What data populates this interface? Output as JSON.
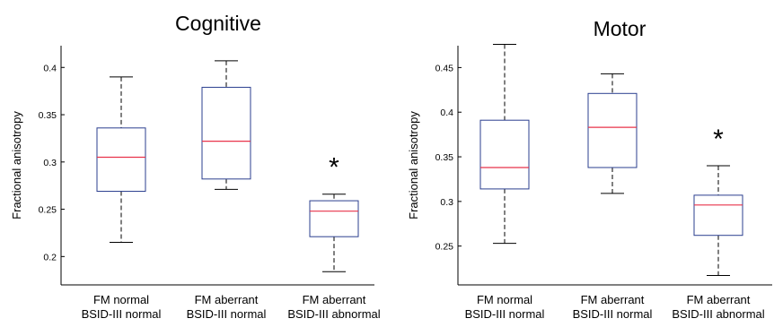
{
  "chart_data": [
    {
      "type": "box",
      "title": "Cognitive",
      "ylabel": "Fractional anisotropy",
      "ylim": [
        0.17,
        0.423
      ],
      "yticks": [
        0.2,
        0.25,
        0.3,
        0.35,
        0.4
      ],
      "ytick_labels": [
        "0.2",
        "0.25",
        "0.3",
        "0.35",
        "0.4"
      ],
      "categories": [
        [
          "FM normal",
          "BSID-III normal"
        ],
        [
          "FM aberrant",
          "BSID-III normal"
        ],
        [
          "FM aberrant",
          "BSID-III abnormal"
        ]
      ],
      "boxes": [
        {
          "whisker_low": 0.215,
          "q1": 0.269,
          "median": 0.305,
          "q3": 0.336,
          "whisker_high": 0.39,
          "annotation": ""
        },
        {
          "whisker_low": 0.271,
          "q1": 0.282,
          "median": 0.322,
          "q3": 0.379,
          "whisker_high": 0.407,
          "annotation": ""
        },
        {
          "whisker_low": 0.184,
          "q1": 0.221,
          "median": 0.248,
          "q3": 0.259,
          "whisker_high": 0.266,
          "annotation": "*"
        }
      ],
      "colors": {
        "box": "#2b3f8f",
        "median": "#e8334a",
        "whisker": "#000000"
      },
      "grid": false
    },
    {
      "type": "box",
      "title": "Motor",
      "ylabel": "Fractional anisotropy",
      "ylim": [
        0.2065,
        0.4745
      ],
      "yticks": [
        0.25,
        0.3,
        0.35,
        0.4,
        0.45
      ],
      "ytick_labels": [
        "0.25",
        "0.3",
        "0.35",
        "0.4",
        "0.45"
      ],
      "categories": [
        [
          "FM normal",
          "BSID-III normal"
        ],
        [
          "FM aberrant",
          "BSID-III normal"
        ],
        [
          "FM aberrant",
          "BSID-III abnormal"
        ]
      ],
      "boxes": [
        {
          "whisker_low": 0.253,
          "q1": 0.314,
          "median": 0.338,
          "q3": 0.391,
          "whisker_high": 0.476,
          "annotation": ""
        },
        {
          "whisker_low": 0.309,
          "q1": 0.338,
          "median": 0.383,
          "q3": 0.421,
          "whisker_high": 0.443,
          "annotation": ""
        },
        {
          "whisker_low": 0.217,
          "q1": 0.262,
          "median": 0.296,
          "q3": 0.307,
          "whisker_high": 0.34,
          "annotation": "*"
        }
      ],
      "colors": {
        "box": "#2b3f8f",
        "median": "#e8334a",
        "whisker": "#000000"
      },
      "grid": false
    }
  ]
}
